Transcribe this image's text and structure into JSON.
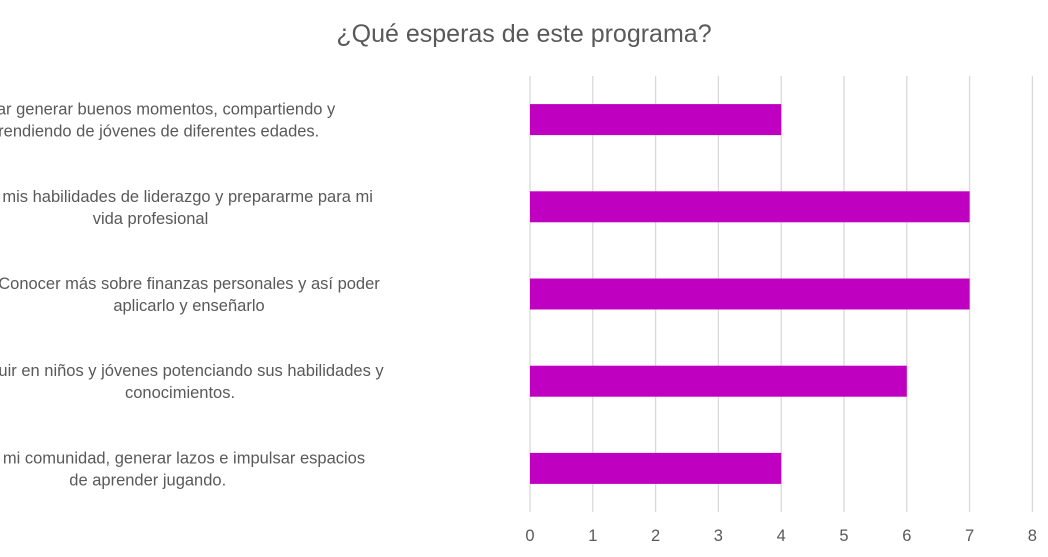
{
  "chart_data": {
    "type": "bar",
    "orientation": "horizontal",
    "title": "¿Qué esperas de este programa?",
    "categories": [
      [
        "Lograr generar buenos momentos, compartiendo y",
        "aprendiendo de jóvenes de diferentes edades."
      ],
      [
        "Potenciar mis habilidades de liderazgo y prepararme para mi",
        "vida profesional"
      ],
      [
        "Conocer más sobre finanzas personales y así poder",
        "aplicarlo y enseñarlo"
      ],
      [
        "Influir en niños y jóvenes potenciando sus habilidades y",
        "conocimientos."
      ],
      [
        "Aportar a mi comunidad, generar lazos e impulsar espacios",
        "de aprender jugando."
      ]
    ],
    "values": [
      4,
      7,
      7,
      6,
      4
    ],
    "xlim": [
      0,
      8
    ],
    "xticks": [
      "0",
      "1",
      "2",
      "3",
      "4",
      "5",
      "6",
      "7",
      "8"
    ],
    "grid": "vertical",
    "bar_color": "#c000c0",
    "grid_color": "#d9d9d9",
    "text_color": "#595959"
  }
}
